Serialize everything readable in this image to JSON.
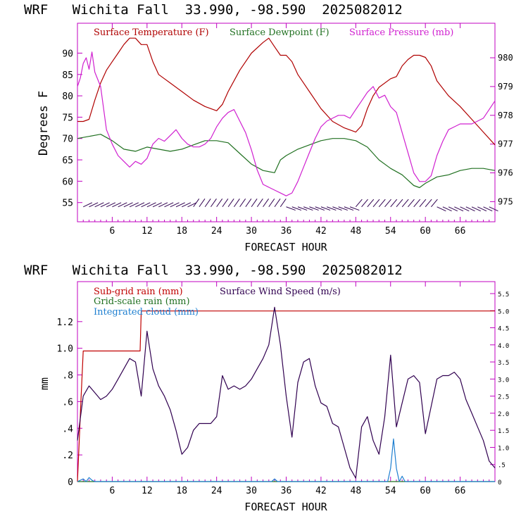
{
  "chart_data": [
    {
      "type": "line",
      "title": "WRF   Wichita Fall  33.990, -98.590  2025082012",
      "xlabel": "FORECAST HOUR",
      "ylabel": "Degrees F",
      "xlim": [
        0,
        72
      ],
      "ylim": [
        50.5,
        97
      ],
      "y2lim": [
        974.3,
        981.2
      ],
      "x_ticks": [
        "6",
        "12",
        "18",
        "24",
        "30",
        "36",
        "42",
        "48",
        "54",
        "60",
        "66"
      ],
      "y_ticks": [
        "55",
        "60",
        "65",
        "70",
        "75",
        "80",
        "85",
        "90"
      ],
      "y2_ticks": [
        "975",
        "976",
        "977",
        "978",
        "979",
        "980"
      ],
      "colors": {
        "axis": "#c000c0",
        "temp": "#b00000",
        "dew": "#207020",
        "pres": "#d020d0",
        "barbs": "#300050"
      },
      "series": [
        {
          "name": "Surface Temperature (F)",
          "axis": "left",
          "x": [
            0,
            1,
            2,
            3,
            4,
            5,
            6,
            7,
            8,
            9,
            10,
            11,
            12,
            13,
            14,
            15,
            16,
            18,
            20,
            22,
            24,
            25,
            26,
            28,
            30,
            32,
            33,
            34,
            35,
            36,
            37,
            38,
            40,
            42,
            44,
            46,
            48,
            49,
            50,
            51,
            52,
            54,
            55,
            56,
            57,
            58,
            59,
            60,
            61,
            62,
            64,
            66,
            68,
            70,
            72
          ],
          "y": [
            74,
            74,
            74.5,
            79,
            83,
            86,
            88,
            90,
            92,
            93.5,
            93.5,
            92,
            92,
            88,
            85,
            84,
            83,
            81,
            79,
            77.5,
            76.5,
            78,
            81,
            86,
            90,
            92.5,
            93.5,
            91.5,
            89.5,
            89.5,
            88,
            85,
            81,
            77,
            74,
            72.5,
            71.5,
            73,
            77,
            80,
            82,
            84,
            84.5,
            87,
            88.5,
            89.5,
            89.5,
            89,
            87,
            83.5,
            80,
            77.5,
            74.5,
            71.5,
            68.5
          ]
        },
        {
          "name": "Surface Dewpoint (F)",
          "axis": "left",
          "x": [
            0,
            2,
            4,
            6,
            8,
            10,
            12,
            14,
            16,
            18,
            20,
            22,
            24,
            26,
            28,
            30,
            32,
            34,
            35,
            36,
            38,
            40,
            42,
            44,
            46,
            48,
            50,
            52,
            54,
            56,
            58,
            59,
            60,
            62,
            64,
            66,
            68,
            70,
            72
          ],
          "y": [
            70,
            70.5,
            71,
            69.5,
            67.5,
            67,
            68,
            67.5,
            67,
            67.5,
            68.5,
            69.5,
            69.5,
            69,
            66.5,
            64,
            62.5,
            62,
            65,
            66,
            67.5,
            68.5,
            69.5,
            70,
            70,
            69.5,
            68,
            65,
            63,
            61.5,
            59,
            58.5,
            59.5,
            61,
            61.5,
            62.5,
            63,
            63,
            62.5
          ]
        },
        {
          "name": "Surface Pressure (mb)",
          "axis": "right",
          "x": [
            0,
            0.5,
            1,
            1.5,
            2,
            2.5,
            3,
            4,
            5,
            6,
            7,
            8,
            9,
            10,
            11,
            12,
            13,
            14,
            15,
            16,
            17,
            18,
            19,
            20,
            21,
            22,
            23,
            24,
            25,
            26,
            27,
            28,
            29,
            30,
            31,
            32,
            33,
            34,
            35,
            36,
            37,
            38,
            39,
            40,
            41,
            42,
            43,
            44,
            45,
            46,
            47,
            48,
            49,
            50,
            51,
            52,
            53,
            54,
            55,
            56,
            57,
            58,
            59,
            60,
            61,
            62,
            63,
            64,
            65,
            66,
            67,
            68,
            69,
            70,
            71,
            72
          ],
          "y": [
            979,
            979.3,
            979.8,
            980,
            979.6,
            980.2,
            979.5,
            979,
            977.5,
            977,
            976.6,
            976.4,
            976.2,
            976.4,
            976.3,
            976.5,
            977,
            977.2,
            977.1,
            977.3,
            977.5,
            977.2,
            977,
            976.9,
            976.9,
            977,
            977.2,
            977.6,
            977.9,
            978.1,
            978.2,
            977.8,
            977.4,
            976.8,
            976.1,
            975.6,
            975.5,
            975.4,
            975.3,
            975.2,
            975.3,
            975.7,
            976.2,
            976.7,
            977.2,
            977.6,
            977.8,
            977.9,
            978,
            978,
            977.9,
            978.2,
            978.5,
            978.8,
            979,
            978.6,
            978.7,
            978.3,
            978.1,
            977.4,
            976.7,
            976,
            975.7,
            975.7,
            975.9,
            976.6,
            977.1,
            977.5,
            977.6,
            977.7,
            977.7,
            977.7,
            977.8,
            977.9,
            978.2,
            978.5
          ]
        }
      ],
      "legend_placement": "top",
      "wind_barbs": "row of wind barbs along the bottom of the panel"
    },
    {
      "type": "line",
      "title": "WRF   Wichita Fall  33.990, -98.590  2025082012",
      "xlabel": "FORECAST HOUR",
      "ylabel": "mm",
      "xlim": [
        0,
        72
      ],
      "ylim": [
        0,
        1.5
      ],
      "y2lim": [
        0,
        5.85
      ],
      "x_ticks": [
        "6",
        "12",
        "18",
        "24",
        "30",
        "36",
        "42",
        "48",
        "54",
        "60",
        "66"
      ],
      "y_ticks": [
        "0",
        ".2",
        ".4",
        ".6",
        ".8",
        "1.0",
        "1.2"
      ],
      "y2_ticks": [
        "0",
        ".5",
        "1.0",
        "1.5",
        "2.0",
        "2.5",
        "3.0",
        "3.5",
        "4.0",
        "4.5",
        "5.0",
        "5.5"
      ],
      "colors": {
        "axis": "#c000c0",
        "subgrid": "#c00000",
        "gridscale": "#207020",
        "cloud": "#1e7fd0",
        "wind": "#300050"
      },
      "series": [
        {
          "name": "Sub-grid rain (mm)",
          "axis": "left",
          "x": [
            0,
            0.3,
            0.6,
            1,
            1.2,
            10.8,
            11,
            72
          ],
          "y": [
            0,
            0.3,
            0.6,
            0.98,
            0.98,
            0.98,
            1.28,
            1.28
          ]
        },
        {
          "name": "Grid-scale rain (mm)",
          "axis": "left",
          "x": [
            0,
            72
          ],
          "y": [
            0,
            0
          ]
        },
        {
          "name": "Integrated cloud (mm)",
          "axis": "left",
          "x": [
            0,
            1,
            1.5,
            2,
            2.5,
            3,
            33.5,
            34,
            34.5,
            53.5,
            54,
            54.5,
            55,
            55.5,
            56,
            56.5,
            72
          ],
          "y": [
            0,
            0.02,
            0,
            0.03,
            0.01,
            0,
            0,
            0.02,
            0,
            0,
            0.1,
            0.32,
            0.1,
            0,
            0.04,
            0,
            0
          ]
        },
        {
          "name": "Surface Wind Speed (m/s)",
          "axis": "right",
          "x": [
            0,
            1,
            2,
            3,
            4,
            5,
            6,
            7,
            8,
            9,
            10,
            11,
            12,
            13,
            14,
            15,
            16,
            17,
            18,
            19,
            20,
            21,
            22,
            23,
            24,
            25,
            26,
            27,
            28,
            29,
            30,
            31,
            32,
            33,
            34,
            35,
            36,
            37,
            38,
            39,
            40,
            41,
            42,
            43,
            44,
            45,
            46,
            47,
            48,
            49,
            50,
            51,
            52,
            53,
            54,
            55,
            56,
            57,
            58,
            59,
            60,
            61,
            62,
            63,
            64,
            65,
            66,
            67,
            68,
            69,
            70,
            71,
            72
          ],
          "y": [
            1.2,
            2.5,
            2.8,
            2.6,
            2.4,
            2.5,
            2.7,
            3.0,
            3.3,
            3.6,
            3.5,
            2.5,
            4.4,
            3.3,
            2.8,
            2.5,
            2.1,
            1.5,
            0.8,
            1.0,
            1.5,
            1.7,
            1.7,
            1.7,
            1.9,
            3.1,
            2.7,
            2.8,
            2.7,
            2.8,
            3.0,
            3.3,
            3.6,
            4.0,
            5.1,
            4.0,
            2.5,
            1.3,
            2.9,
            3.5,
            3.6,
            2.8,
            2.3,
            2.2,
            1.7,
            1.6,
            1.0,
            0.4,
            0.1,
            1.6,
            1.9,
            1.2,
            0.8,
            1.9,
            3.7,
            1.6,
            2.3,
            3.0,
            3.1,
            2.9,
            1.4,
            2.2,
            3.0,
            3.1,
            3.1,
            3.2,
            3.0,
            2.4,
            2.0,
            1.6,
            1.2,
            0.6,
            0.4
          ]
        }
      ],
      "legend_placement": "top-left"
    }
  ]
}
